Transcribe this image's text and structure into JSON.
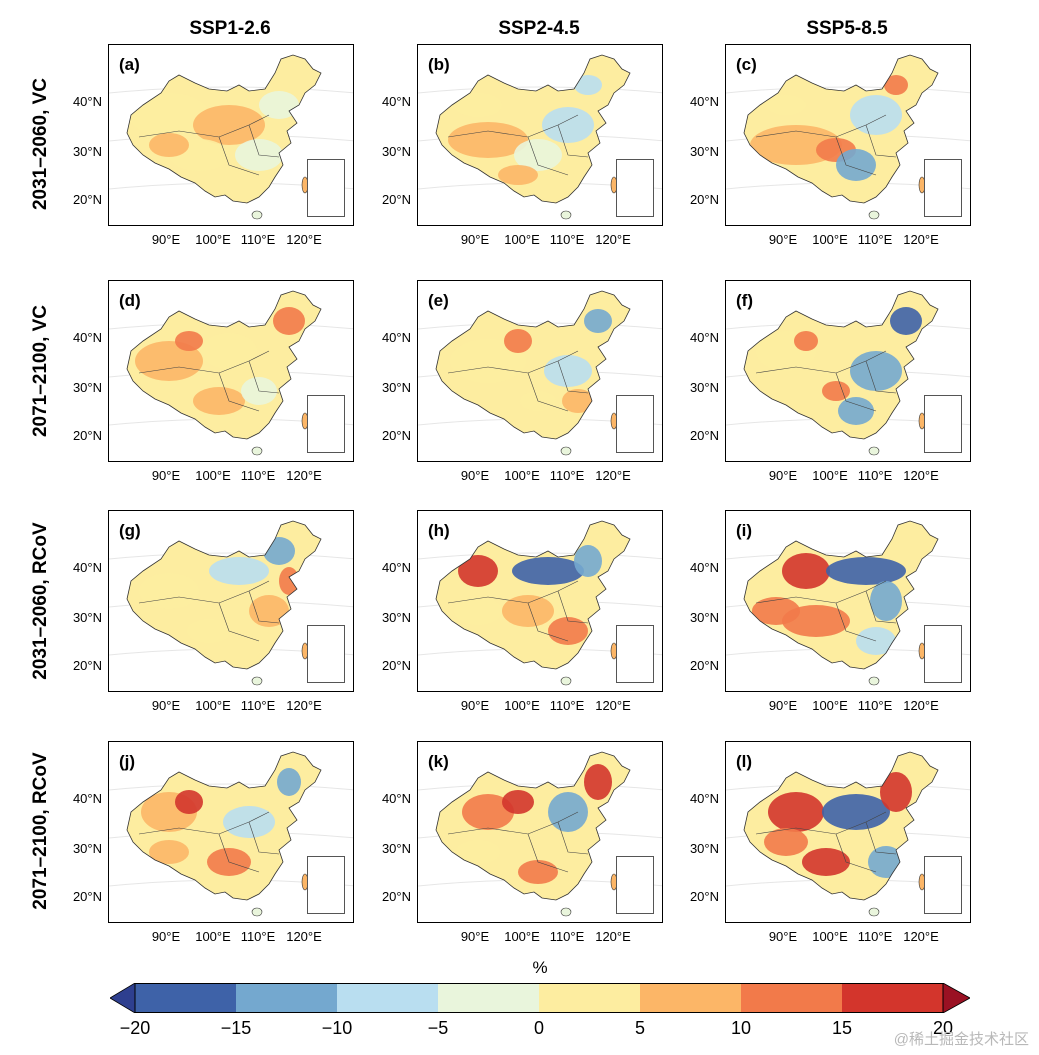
{
  "columns": [
    "SSP1-2.6",
    "SSP2-4.5",
    "SSP5-8.5"
  ],
  "rows": [
    "2031–2060, VC",
    "2071–2100, VC",
    "2031–2060, RCoV",
    "2071–2100, RCoV"
  ],
  "panels": [
    "(a)",
    "(b)",
    "(c)",
    "(d)",
    "(e)",
    "(f)",
    "(g)",
    "(h)",
    "(i)",
    "(j)",
    "(k)",
    "(l)"
  ],
  "lat_labels": [
    "40°N",
    "30°N",
    "20°N"
  ],
  "lon_labels": [
    "90°E",
    "100°E",
    "110°E",
    "120°E"
  ],
  "colorbar": {
    "title": "%",
    "ticks": [
      "−20",
      "−15",
      "−10",
      "−5",
      "0",
      "5",
      "10",
      "15",
      "20"
    ],
    "colors": [
      "#3e62a8",
      "#74a8cf",
      "#b9def0",
      "#e9f5dc",
      "#fdeda0",
      "#fcb667",
      "#f27a4a",
      "#d3352c"
    ],
    "under_color": "#2e3f8f",
    "over_color": "#9a1123"
  },
  "watermark": "@稀土掘金技术社区"
}
